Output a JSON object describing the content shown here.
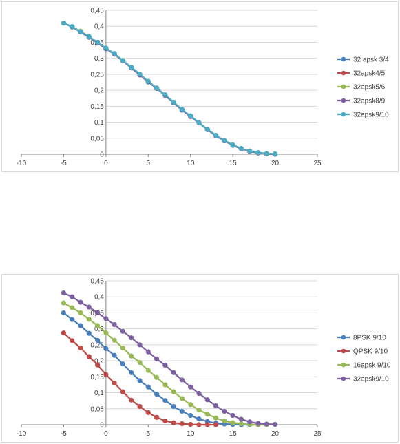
{
  "chart_data": [
    {
      "type": "line",
      "title": "",
      "xlabel": "",
      "ylabel": "",
      "xlim": [
        -10,
        25
      ],
      "ylim": [
        0,
        0.45
      ],
      "x_ticks": [
        "-10",
        "-5",
        "0",
        "5",
        "10",
        "15",
        "20",
        "25"
      ],
      "y_ticks": [
        "0",
        "0,05",
        "0,1",
        "0,15",
        "0,2",
        "0,25",
        "0,3",
        "0,35",
        "0,4",
        "0,45"
      ],
      "legend_position": "right",
      "grid": "horizontal",
      "x": [
        -5,
        -4,
        -3,
        -2,
        -1,
        0,
        1,
        2,
        3,
        4,
        5,
        6,
        7,
        8,
        9,
        10,
        11,
        12,
        13,
        14,
        15,
        16,
        17,
        18,
        19,
        20
      ],
      "series": [
        {
          "name": "32 apsk 3/4",
          "color": "#4a7ebb",
          "values": [
            0.41,
            0.398,
            0.382,
            0.366,
            0.348,
            0.33,
            0.313,
            0.292,
            0.27,
            0.248,
            0.226,
            0.206,
            0.184,
            0.161,
            0.138,
            0.118,
            0.098,
            0.077,
            0.058,
            0.042,
            0.028,
            0.017,
            0.009,
            0.004,
            0.001,
            0.0
          ]
        },
        {
          "name": "32apsk4/5",
          "color": "#be4b48",
          "values": [
            0.41,
            0.398,
            0.382,
            0.366,
            0.348,
            0.33,
            0.313,
            0.292,
            0.27,
            0.248,
            0.226,
            0.206,
            0.184,
            0.161,
            0.138,
            0.118,
            0.098,
            0.077,
            0.058,
            0.042,
            0.028,
            0.017,
            0.009,
            0.004,
            0.001,
            0.0
          ]
        },
        {
          "name": "32apsk5/6",
          "color": "#98b954",
          "values": [
            0.41,
            0.398,
            0.385,
            0.367,
            0.349,
            0.331,
            0.314,
            0.293,
            0.272,
            0.25,
            0.227,
            0.207,
            0.185,
            0.162,
            0.139,
            0.119,
            0.098,
            0.078,
            0.059,
            0.043,
            0.029,
            0.018,
            0.01,
            0.005,
            0.002,
            0.0
          ]
        },
        {
          "name": "32apsk8/9",
          "color": "#7d60a0",
          "values": [
            0.41,
            0.398,
            0.382,
            0.366,
            0.348,
            0.33,
            0.313,
            0.292,
            0.27,
            0.248,
            0.226,
            0.206,
            0.184,
            0.161,
            0.138,
            0.118,
            0.098,
            0.077,
            0.058,
            0.042,
            0.028,
            0.017,
            0.009,
            0.004,
            0.001,
            0.0
          ]
        },
        {
          "name": "32apsk9/10",
          "color": "#4bacc6",
          "values": [
            0.41,
            0.399,
            0.383,
            0.368,
            0.35,
            0.332,
            0.315,
            0.293,
            0.272,
            0.251,
            0.228,
            0.207,
            0.186,
            0.163,
            0.14,
            0.12,
            0.099,
            0.078,
            0.059,
            0.043,
            0.029,
            0.018,
            0.01,
            0.005,
            0.002,
            0.001
          ]
        }
      ]
    },
    {
      "type": "line",
      "title": "",
      "xlabel": "",
      "ylabel": "",
      "xlim": [
        -10,
        25
      ],
      "ylim": [
        0,
        0.45
      ],
      "x_ticks": [
        "-10",
        "-5",
        "0",
        "5",
        "10",
        "15",
        "20",
        "25"
      ],
      "y_ticks": [
        "0",
        "0,05",
        "0,1",
        "0,15",
        "0,2",
        "0,25",
        "0,3",
        "0,35",
        "0,4",
        "0,45"
      ],
      "legend_position": "right",
      "grid": "horizontal",
      "x": [
        -5,
        -4,
        -3,
        -2,
        -1,
        0,
        1,
        2,
        3,
        4,
        5,
        6,
        7,
        8,
        9,
        10,
        11,
        12,
        13,
        14,
        15,
        16,
        17,
        18,
        19,
        20
      ],
      "series": [
        {
          "name": "8PSK 9/10",
          "color": "#4a7ebb",
          "x": [
            -5,
            -4,
            -3,
            -2,
            -1,
            0,
            1,
            2,
            3,
            4,
            5,
            6,
            7,
            8,
            9,
            10,
            11,
            12,
            13,
            14,
            15,
            16,
            17,
            18
          ],
          "values": [
            0.35,
            0.329,
            0.31,
            0.286,
            0.264,
            0.238,
            0.217,
            0.19,
            0.163,
            0.138,
            0.118,
            0.096,
            0.076,
            0.057,
            0.042,
            0.029,
            0.018,
            0.01,
            0.005,
            0.002,
            0.001,
            0.0,
            0.0,
            0.0
          ]
        },
        {
          "name": "QPSK 9/10",
          "color": "#be4b48",
          "x": [
            -5,
            -4,
            -3,
            -2,
            -1,
            0,
            1,
            2,
            3,
            4,
            5,
            6,
            7,
            8,
            9,
            10,
            11,
            12,
            13
          ],
          "values": [
            0.287,
            0.263,
            0.24,
            0.213,
            0.187,
            0.157,
            0.13,
            0.103,
            0.077,
            0.057,
            0.038,
            0.023,
            0.012,
            0.006,
            0.003,
            0.001,
            0.0,
            0.0,
            0.0
          ]
        },
        {
          "name": "16apsk 9/10",
          "color": "#98b954",
          "x": [
            -5,
            -4,
            -3,
            -2,
            -1,
            0,
            1,
            2,
            3,
            4,
            5,
            6,
            7,
            8,
            9,
            10,
            11,
            12,
            13,
            14,
            15,
            16,
            17,
            18,
            19
          ],
          "values": [
            0.381,
            0.366,
            0.35,
            0.33,
            0.31,
            0.287,
            0.264,
            0.24,
            0.215,
            0.195,
            0.17,
            0.148,
            0.125,
            0.103,
            0.082,
            0.063,
            0.046,
            0.033,
            0.021,
            0.012,
            0.006,
            0.003,
            0.001,
            0.0,
            0.0
          ]
        },
        {
          "name": "32apsk9/10",
          "color": "#7d60a0",
          "x": [
            -5,
            -4,
            -3,
            -2,
            -1,
            0,
            1,
            2,
            3,
            4,
            5,
            6,
            7,
            8,
            9,
            10,
            11,
            12,
            13,
            14,
            15,
            16,
            17,
            18,
            19,
            20
          ],
          "values": [
            0.412,
            0.4,
            0.383,
            0.368,
            0.35,
            0.332,
            0.313,
            0.292,
            0.272,
            0.25,
            0.228,
            0.206,
            0.186,
            0.163,
            0.14,
            0.118,
            0.098,
            0.078,
            0.059,
            0.042,
            0.029,
            0.017,
            0.009,
            0.004,
            0.002,
            0.001
          ]
        }
      ]
    }
  ]
}
